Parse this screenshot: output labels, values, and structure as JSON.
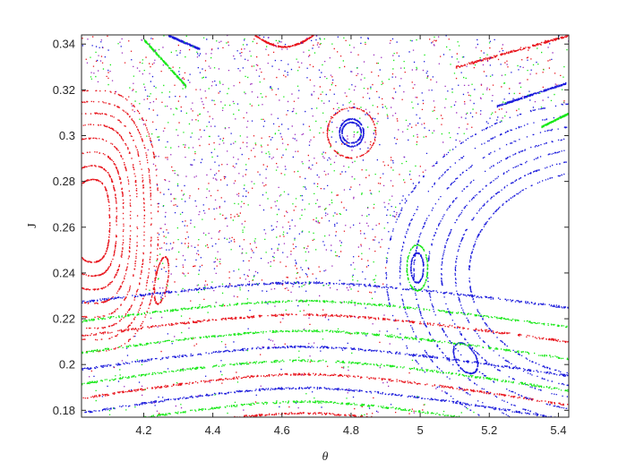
{
  "chart_data": {
    "type": "scatter",
    "title": "",
    "xlabel": "θ",
    "ylabel": "J",
    "xlim": [
      4.02,
      5.43
    ],
    "ylim": [
      0.177,
      0.344
    ],
    "xticks": [
      4.2,
      4.4,
      4.6,
      4.8,
      5,
      5.2,
      5.4
    ],
    "xtick_labels": [
      "4.2",
      "4.4",
      "4.6",
      "4.8",
      "5",
      "5.2",
      "5.4"
    ],
    "yticks": [
      0.18,
      0.2,
      0.22,
      0.24,
      0.26,
      0.28,
      0.3,
      0.32,
      0.34
    ],
    "ytick_labels": [
      "0.18",
      "0.2",
      "0.22",
      "0.24",
      "0.26",
      "0.28",
      "0.3",
      "0.32",
      "0.34"
    ],
    "grid": false,
    "legend": "none",
    "marker": "dot",
    "series_colors": [
      "#e8141c",
      "#1a1adb",
      "#17e817",
      "#9b2bbd"
    ],
    "structures": {
      "red_island": {
        "color": "#e8141c",
        "center": [
          4.05,
          0.263
        ],
        "radii_x": [
          0.05,
          0.07,
          0.09,
          0.11,
          0.13,
          0.15,
          0.17,
          0.19
        ],
        "radii_y": [
          0.018,
          0.024,
          0.03,
          0.036,
          0.042,
          0.047,
          0.052,
          0.057
        ],
        "shape_power": 0.75
      },
      "red_small_island": {
        "color": "#e8141c",
        "center": [
          4.25,
          0.237
        ],
        "rx": 0.025,
        "ry": 0.009,
        "tilt": 0.6
      },
      "top_island": {
        "color": "#1a1adb",
        "center": [
          4.8,
          0.3015
        ],
        "rx": 0.035,
        "ry": 0.006
      },
      "top_island_ring": {
        "color": "#e8141c",
        "center": [
          4.8,
          0.3015
        ],
        "rx": 0.07,
        "ry": 0.011
      },
      "mid_island": {
        "color": "#1a1adb",
        "center": [
          4.99,
          0.2425
        ],
        "rx": 0.018,
        "ry": 0.0065
      },
      "mid_island_ring": {
        "color": "#17e817",
        "center": [
          4.99,
          0.2425
        ],
        "rx": 0.03,
        "ry": 0.01
      },
      "lower_island": {
        "color": "#1a1adb",
        "center": [
          5.13,
          0.203
        ],
        "rx": 0.04,
        "ry": 0.006,
        "tilt": -0.5
      },
      "blue_separatrix": {
        "color": "#1a1adb",
        "center": [
          5.52,
          0.24
        ],
        "radii_x": [
          0.38,
          0.42,
          0.46,
          0.5,
          0.54,
          0.58,
          0.62
        ],
        "radii_y": [
          0.045,
          0.05,
          0.055,
          0.06,
          0.065,
          0.07,
          0.075
        ]
      },
      "lower_arches": {
        "apex_x": 4.66,
        "apex_y": [
          0.236,
          0.228,
          0.222,
          0.215,
          0.208,
          0.202,
          0.196,
          0.19,
          0.184,
          0.179
        ],
        "colors": [
          "#1a1adb",
          "#17e817",
          "#e8141c",
          "#17e817",
          "#1a1adb",
          "#17e817",
          "#e8141c",
          "#1a1adb",
          "#17e817",
          "#e8141c"
        ]
      },
      "top_red_curves": {
        "color": "#e8141c"
      },
      "chaotic_sea": {
        "colors": [
          "#e8141c",
          "#1a1adb",
          "#17e817",
          "#9b2bbd"
        ],
        "count": 9000
      }
    }
  }
}
